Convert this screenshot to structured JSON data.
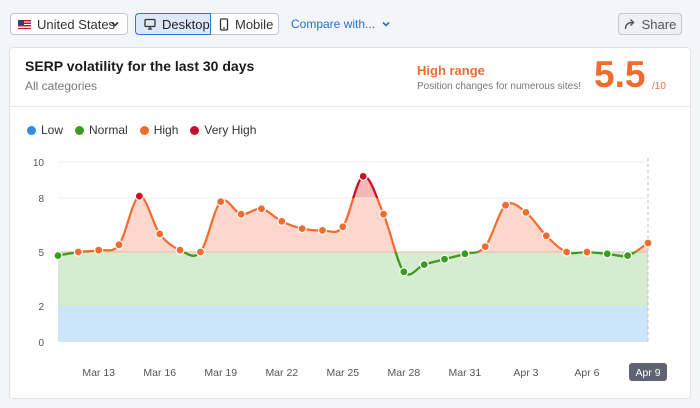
{
  "toolbar": {
    "country_label": "United States",
    "device_desktop_label": "Desktop",
    "device_mobile_label": "Mobile",
    "compare_label": "Compare with...",
    "share_label": "Share"
  },
  "card": {
    "title": "SERP volatility for the last 30 days",
    "subtitle": "All categories",
    "range_label": "High range",
    "range_description": "Position changes for numerous sites!",
    "score": "5.5",
    "score_max": "/10"
  },
  "colors": {
    "low": "#2d8fe0",
    "normal": "#3a9d23",
    "high": "#f26b2e",
    "very_high": "#c8102e",
    "accent": "#1f6fcf"
  },
  "chart_data": {
    "type": "line",
    "legend": [
      "Low",
      "Normal",
      "High",
      "Very High"
    ],
    "legend_position": "top-left",
    "y_ticks": [
      0,
      2,
      5,
      8,
      10
    ],
    "ylim": [
      0,
      10
    ],
    "bands": [
      {
        "name": "Low",
        "from": 0,
        "to": 2
      },
      {
        "name": "Normal",
        "from": 2,
        "to": 5
      },
      {
        "name": "High",
        "from": 5,
        "to": 10
      }
    ],
    "x_tick_labels": [
      "Mar 13",
      "Mar 16",
      "Mar 19",
      "Mar 22",
      "Mar 25",
      "Mar 28",
      "Mar 31",
      "Apr 3",
      "Apr 6",
      "Apr 9"
    ],
    "selected_x_label": "Apr 9",
    "x": [
      "Mar 11",
      "Mar 12",
      "Mar 13",
      "Mar 14",
      "Mar 15",
      "Mar 16",
      "Mar 17",
      "Mar 18",
      "Mar 19",
      "Mar 20",
      "Mar 21",
      "Mar 22",
      "Mar 23",
      "Mar 24",
      "Mar 25",
      "Mar 26",
      "Mar 27",
      "Mar 28",
      "Mar 29",
      "Mar 30",
      "Mar 31",
      "Apr 1",
      "Apr 2",
      "Apr 3",
      "Apr 4",
      "Apr 5",
      "Apr 6",
      "Apr 7",
      "Apr 8",
      "Apr 9"
    ],
    "values": [
      4.8,
      5.0,
      5.1,
      5.4,
      8.1,
      6.0,
      5.1,
      5.0,
      7.8,
      7.1,
      7.4,
      6.7,
      6.3,
      6.2,
      6.4,
      9.2,
      7.1,
      3.9,
      4.3,
      4.6,
      4.9,
      5.3,
      7.6,
      7.2,
      5.9,
      5.0,
      5.0,
      4.9,
      4.8,
      5.5
    ]
  }
}
